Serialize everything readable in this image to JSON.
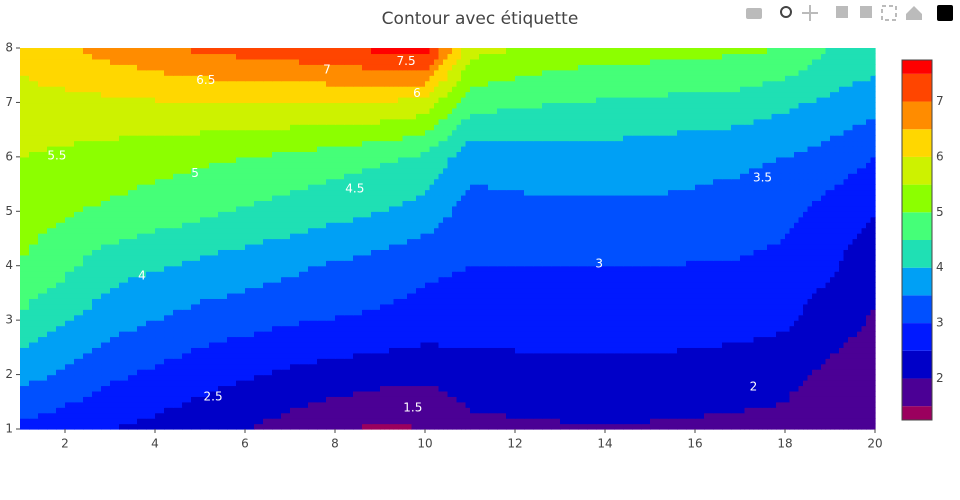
{
  "chart_data": {
    "type": "contour",
    "title": "Contour avec étiquette",
    "x": [
      1,
      3,
      5,
      7,
      9,
      10,
      11,
      13,
      15,
      17,
      18,
      19,
      20
    ],
    "y": [
      1,
      2,
      3,
      4,
      5,
      6,
      7,
      8
    ],
    "z": [
      [
        2.9,
        2.5,
        2.2,
        1.8,
        1.4,
        1.5,
        1.9,
        1.95,
        1.95,
        1.9,
        1.9,
        1.7,
        1.5
      ],
      [
        3.7,
        3.1,
        2.7,
        2.4,
        2.2,
        2.1,
        2.2,
        2.3,
        2.3,
        2.2,
        2.1,
        1.9,
        1.75
      ],
      [
        4.4,
        3.7,
        3.3,
        3.05,
        2.9,
        2.8,
        2.8,
        2.8,
        2.8,
        2.7,
        2.6,
        2.2,
        1.95
      ],
      [
        5.0,
        4.2,
        3.9,
        3.6,
        3.3,
        3.1,
        3.0,
        3.0,
        3.0,
        2.95,
        2.85,
        2.6,
        2.1
      ],
      [
        5.2,
        4.9,
        4.6,
        4.3,
        4.0,
        3.8,
        3.3,
        3.4,
        3.4,
        3.3,
        3.15,
        2.8,
        2.55
      ],
      [
        5.5,
        5.3,
        5.1,
        4.9,
        4.6,
        4.4,
        3.7,
        3.8,
        3.75,
        3.6,
        3.5,
        3.3,
        3.0
      ],
      [
        5.8,
        5.9,
        6.0,
        6.0,
        6.0,
        5.8,
        4.7,
        4.5,
        4.4,
        4.3,
        4.1,
        3.9,
        3.7
      ],
      [
        6.2,
        6.7,
        7.1,
        7.3,
        7.6,
        7.8,
        5.7,
        5.3,
        5.2,
        5.1,
        5.0,
        4.5,
        4.3
      ]
    ],
    "contours": {
      "start": 1.5,
      "size": 0.5
    },
    "colors": [
      "#9b005e",
      "#4b0095",
      "#0000c8",
      "#0019ff",
      "#0050ff",
      "#00a0f5",
      "#1fe0b4",
      "#45ff78",
      "#8cff00",
      "#cdf200",
      "#ffd700",
      "#ff8c00",
      "#ff4500",
      "#ff0000"
    ],
    "colorbar_range": [
      1.25,
      7.75
    ],
    "colorbar_ticks": [
      2,
      3,
      4,
      5,
      6,
      7
    ],
    "contour_labels": [
      {
        "level": 7.5,
        "x": 9.58,
        "y": 7.75
      },
      {
        "level": 7,
        "x": 7.82,
        "y": 7.6
      },
      {
        "level": 6.5,
        "x": 5.13,
        "y": 7.4
      },
      {
        "level": 6,
        "x": 9.82,
        "y": 7.16
      },
      {
        "level": 5.5,
        "x": 1.82,
        "y": 6.02
      },
      {
        "level": 5,
        "x": 4.89,
        "y": 5.69
      },
      {
        "level": 4.5,
        "x": 8.44,
        "y": 5.41
      },
      {
        "level": 4,
        "x": 3.71,
        "y": 3.81
      },
      {
        "level": 3.5,
        "x": 17.5,
        "y": 5.61
      },
      {
        "level": 3,
        "x": 13.87,
        "y": 4.03
      },
      {
        "level": 2.5,
        "x": 5.29,
        "y": 1.59
      },
      {
        "level": 2,
        "x": 17.3,
        "y": 1.77
      },
      {
        "level": 1.5,
        "x": 9.73,
        "y": 1.39
      }
    ],
    "xlim": [
      1,
      20
    ],
    "xticks": [
      2,
      4,
      6,
      8,
      10,
      12,
      14,
      16,
      18,
      20
    ],
    "ylim": [
      1,
      8
    ],
    "yticks": [
      1,
      2,
      3,
      4,
      5,
      6,
      7,
      8
    ]
  }
}
